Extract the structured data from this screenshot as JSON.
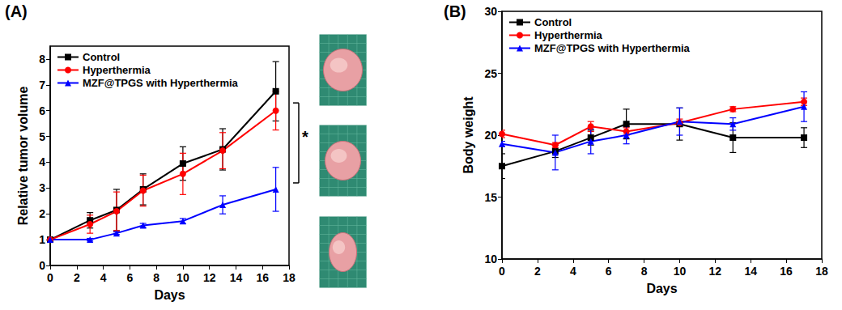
{
  "chart_data": [
    {
      "type": "line",
      "title": "(A)",
      "x_label": "Days",
      "y_label": "Relative tumor volume",
      "xlim": [
        0,
        18
      ],
      "xticks": [
        0,
        2,
        4,
        6,
        8,
        10,
        12,
        14,
        16,
        18
      ],
      "ylim": [
        0,
        8.5
      ],
      "yticks": [
        0,
        1,
        2,
        3,
        4,
        5,
        6,
        7,
        8
      ],
      "grid": false,
      "legend": "upper left",
      "x": [
        0,
        3,
        5,
        7,
        10,
        13,
        17
      ],
      "series": [
        {
          "name": "Control",
          "color": "#000000",
          "marker": "square",
          "values": [
            1,
            1.75,
            2.15,
            2.95,
            3.95,
            4.5,
            6.75
          ],
          "errors": [
            0.05,
            0.3,
            0.8,
            0.6,
            0.65,
            0.8,
            1.15
          ]
        },
        {
          "name": "Hyperthermia",
          "color": "#ff0000",
          "marker": "circle",
          "values": [
            1,
            1.6,
            2.1,
            2.9,
            3.55,
            4.45,
            6.0
          ],
          "errors": [
            0.05,
            0.35,
            0.75,
            0.6,
            0.8,
            0.7,
            0.75
          ]
        },
        {
          "name": "MZF@TPGS with Hyperthermia",
          "color": "#0000ff",
          "marker": "triangle",
          "values": [
            1,
            1.0,
            1.25,
            1.55,
            1.72,
            2.35,
            2.95
          ],
          "errors": [
            0.05,
            0.05,
            0.05,
            0.08,
            0.1,
            0.35,
            0.85
          ]
        }
      ],
      "annotations": [
        {
          "text": "*",
          "y_from": 3.2,
          "y_to": 6.3
        }
      ]
    },
    {
      "type": "line",
      "title": "(B)",
      "x_label": "Days",
      "y_label": "Body weight",
      "xlim": [
        0,
        18
      ],
      "xticks": [
        0,
        2,
        4,
        6,
        8,
        10,
        12,
        14,
        16,
        18
      ],
      "ylim": [
        10,
        30
      ],
      "yticks": [
        10,
        15,
        20,
        25,
        30
      ],
      "grid": false,
      "legend": "upper left",
      "x": [
        0,
        3,
        5,
        7,
        10,
        13,
        17
      ],
      "series": [
        {
          "name": "Control",
          "color": "#000000",
          "marker": "square",
          "values": [
            17.5,
            18.7,
            19.8,
            20.9,
            20.9,
            19.8,
            19.8
          ],
          "errors": [
            1.0,
            0.5,
            0.6,
            1.2,
            1.3,
            1.2,
            0.8
          ]
        },
        {
          "name": "Hyperthermia",
          "color": "#ff0000",
          "marker": "circle",
          "values": [
            20.1,
            19.2,
            20.7,
            20.3,
            21.0,
            22.1,
            22.7
          ],
          "errors": [
            0.3,
            0.2,
            0.4,
            0.3,
            0.3,
            0.2,
            0.3
          ]
        },
        {
          "name": "MZF@TPGS with Hyperthermia",
          "color": "#0000ff",
          "marker": "triangle",
          "values": [
            19.3,
            18.6,
            19.5,
            20.0,
            21.1,
            20.9,
            22.3
          ],
          "errors": [
            0.2,
            1.4,
            1.0,
            0.7,
            1.1,
            0.5,
            1.2
          ]
        }
      ]
    }
  ]
}
